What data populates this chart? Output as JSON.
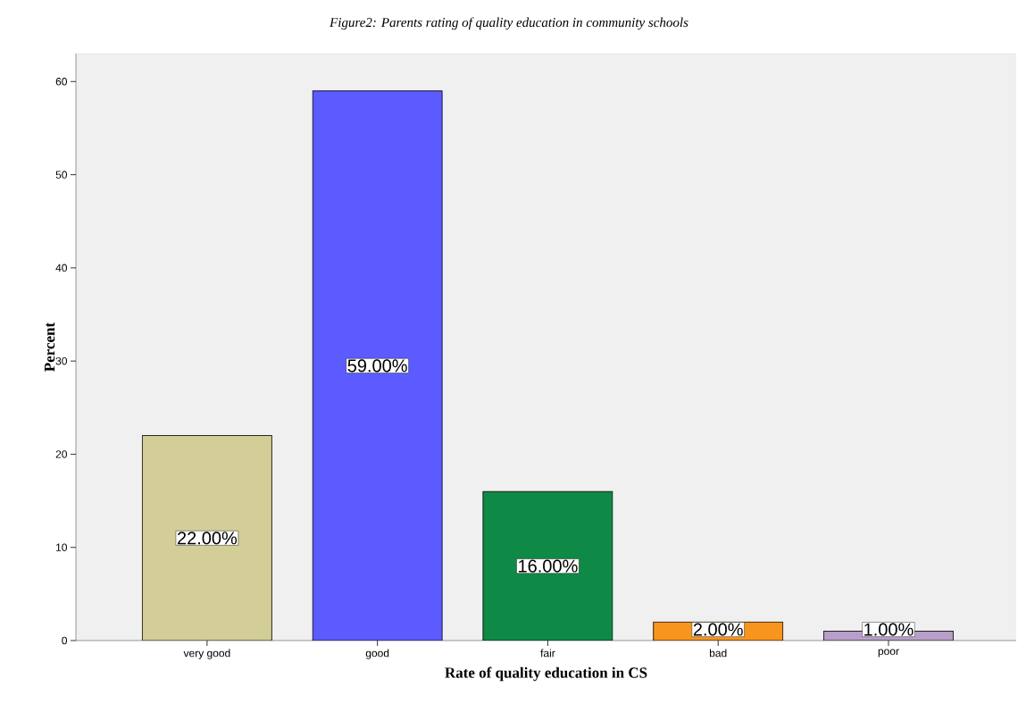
{
  "chart_data": {
    "type": "bar",
    "title": "Figure2: Parents rating of quality education in community schools",
    "xlabel": "Rate of quality education in CS",
    "ylabel": "Percent",
    "categories": [
      "very good",
      "good",
      "fair",
      "bad",
      "poor"
    ],
    "values": [
      22,
      59,
      16,
      2,
      1
    ],
    "colors": [
      "#d3ce97",
      "#5b5bff",
      "#0f8a46",
      "#f7951e",
      "#b89fc9"
    ],
    "value_labels": [
      "22.00%",
      "59.00%",
      "16.00%",
      "2.00%",
      "1.00%"
    ],
    "ylim": [
      0,
      63
    ],
    "yticks": [
      0,
      10,
      20,
      30,
      40,
      50,
      60
    ],
    "grid": false
  }
}
